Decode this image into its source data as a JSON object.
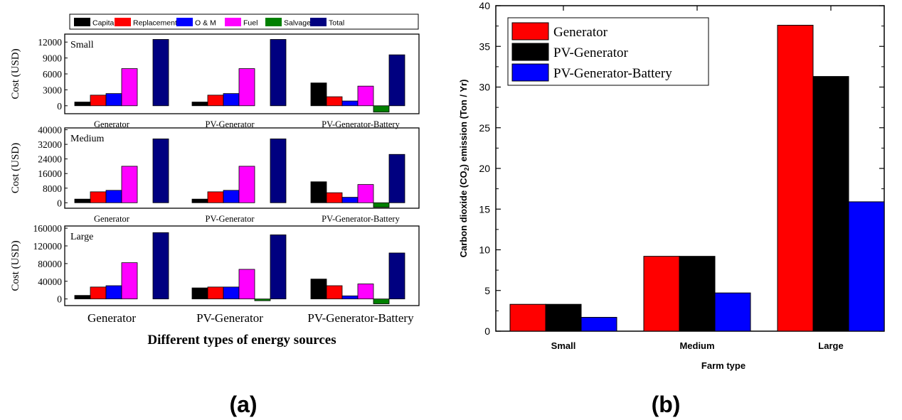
{
  "panel_a": {
    "caption": "(a)",
    "xlabel": "Different types of energy sources",
    "ylabel": "Cost (USD)",
    "legend": [
      {
        "name": "Capital",
        "color": "#000000"
      },
      {
        "name": "Replacement",
        "color": "#ff0000"
      },
      {
        "name": "O & M",
        "color": "#0000ff"
      },
      {
        "name": "Fuel",
        "color": "#ff00ff"
      },
      {
        "name": "Salvage",
        "color": "#008000"
      },
      {
        "name": "Total",
        "color": "#000080"
      }
    ]
  },
  "panel_b": {
    "caption": "(b)"
  },
  "chart_data": [
    {
      "type": "bar",
      "label": "Small",
      "ylabel": "Cost (USD)",
      "categories": [
        "Generator",
        "PV-Generator",
        "PV-Generator-Battery"
      ],
      "ylim": [
        -1500,
        13500
      ],
      "yticks": [
        "0",
        "3000",
        "6000",
        "9000",
        "12000"
      ],
      "ytick_values": [
        0,
        3000,
        6000,
        9000,
        12000
      ],
      "series": [
        {
          "name": "Capital",
          "color": "#000000",
          "values": [
            700,
            700,
            4300
          ]
        },
        {
          "name": "Replacement",
          "color": "#ff0000",
          "values": [
            2000,
            2000,
            1700
          ]
        },
        {
          "name": "O & M",
          "color": "#0000ff",
          "values": [
            2300,
            2300,
            900
          ]
        },
        {
          "name": "Fuel",
          "color": "#ff00ff",
          "values": [
            7000,
            7000,
            3700
          ]
        },
        {
          "name": "Salvage",
          "color": "#008000",
          "values": [
            0,
            0,
            -1200
          ]
        },
        {
          "name": "Total",
          "color": "#000080",
          "values": [
            12500,
            12500,
            9600
          ]
        }
      ]
    },
    {
      "type": "bar",
      "label": "Medium",
      "ylabel": "Cost (USD)",
      "categories": [
        "Generator",
        "PV-Generator",
        "PV-Generator-Battery"
      ],
      "ylim": [
        -3000,
        41000
      ],
      "yticks": [
        "0",
        "8000",
        "16000",
        "24000",
        "32000",
        "40000"
      ],
      "ytick_values": [
        0,
        8000,
        16000,
        24000,
        32000,
        40000
      ],
      "series": [
        {
          "name": "Capital",
          "color": "#000000",
          "values": [
            2000,
            2000,
            11500
          ]
        },
        {
          "name": "Replacement",
          "color": "#ff0000",
          "values": [
            6000,
            6000,
            5500
          ]
        },
        {
          "name": "O & M",
          "color": "#0000ff",
          "values": [
            6800,
            6800,
            3000
          ]
        },
        {
          "name": "Fuel",
          "color": "#ff00ff",
          "values": [
            20000,
            20000,
            10000
          ]
        },
        {
          "name": "Salvage",
          "color": "#008000",
          "values": [
            0,
            0,
            -2500
          ]
        },
        {
          "name": "Total",
          "color": "#000080",
          "values": [
            35000,
            35000,
            26500
          ]
        }
      ]
    },
    {
      "type": "bar",
      "label": "Large",
      "ylabel": "Cost (USD)",
      "categories": [
        "Generator",
        "PV-Generator",
        "PV-Generator-Battery"
      ],
      "ylim": [
        -15000,
        165000
      ],
      "yticks": [
        "0",
        "40000",
        "80000",
        "120000",
        "160000"
      ],
      "ytick_values": [
        0,
        40000,
        80000,
        120000,
        160000
      ],
      "series": [
        {
          "name": "Capital",
          "color": "#000000",
          "values": [
            8000,
            25000,
            45000
          ]
        },
        {
          "name": "Replacement",
          "color": "#ff0000",
          "values": [
            27000,
            27000,
            30000
          ]
        },
        {
          "name": "O & M",
          "color": "#0000ff",
          "values": [
            30000,
            27000,
            7000
          ]
        },
        {
          "name": "Fuel",
          "color": "#ff00ff",
          "values": [
            82000,
            67000,
            34000
          ]
        },
        {
          "name": "Salvage",
          "color": "#008000",
          "values": [
            0,
            -4000,
            -11000
          ]
        },
        {
          "name": "Total",
          "color": "#000080",
          "values": [
            150000,
            145000,
            104000
          ]
        }
      ]
    },
    {
      "type": "bar",
      "xlabel": "Farm type",
      "ylabel_parts": [
        "Carbon dioxide (CO",
        "2",
        ") emission (Ton / Yr)"
      ],
      "categories": [
        "Small",
        "Medium",
        "Large"
      ],
      "ylim": [
        0,
        40
      ],
      "yticks": [
        "0",
        "5",
        "10",
        "15",
        "20",
        "25",
        "30",
        "35",
        "40"
      ],
      "ytick_values": [
        0,
        5,
        10,
        15,
        20,
        25,
        30,
        35,
        40
      ],
      "legend_position": "top-left",
      "series": [
        {
          "name": "Generator",
          "color": "#ff0000",
          "values": [
            3.3,
            9.2,
            37.6
          ]
        },
        {
          "name": "PV-Generator",
          "color": "#000000",
          "values": [
            3.3,
            9.2,
            31.3
          ]
        },
        {
          "name": "PV-Generator-Battery",
          "color": "#0000ff",
          "values": [
            1.7,
            4.7,
            15.9
          ]
        }
      ]
    }
  ]
}
